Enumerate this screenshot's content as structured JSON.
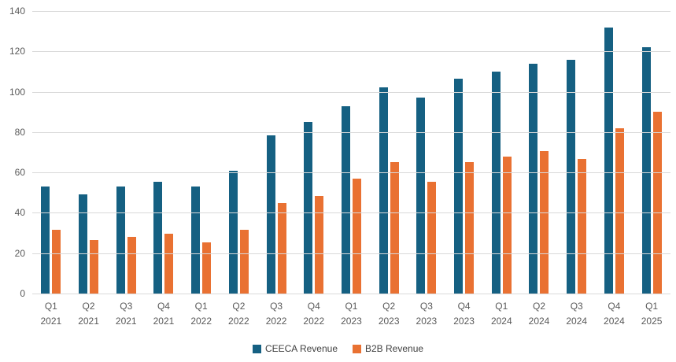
{
  "chart_data": {
    "type": "bar",
    "title": "",
    "categories": [
      "Q1 2021",
      "Q2 2021",
      "Q3 2021",
      "Q4 2021",
      "Q1 2022",
      "Q2 2022",
      "Q3 2022",
      "Q4 2022",
      "Q1 2023",
      "Q2 2023",
      "Q3 2023",
      "Q4 2023",
      "Q1 2024",
      "Q2 2024",
      "Q3 2024",
      "Q4 2024",
      "Q1 2025"
    ],
    "series": [
      {
        "name": "CEECA Revenue",
        "color": "#156082",
        "values": [
          53,
          49,
          53,
          55.5,
          53,
          61,
          78.5,
          85,
          93,
          102,
          97,
          106.5,
          110,
          114,
          116,
          132,
          122
        ]
      },
      {
        "name": "B2B Revenue",
        "color": "#E97132",
        "values": [
          31.5,
          26.5,
          28,
          29.5,
          25.5,
          31.5,
          45,
          48.5,
          57,
          65,
          55.5,
          65,
          68,
          70.5,
          66.5,
          82,
          90
        ]
      }
    ],
    "xlabel": "",
    "ylabel": "",
    "ylim": [
      0,
      140
    ],
    "y_ticks": [
      0,
      20,
      40,
      60,
      80,
      100,
      120,
      140
    ],
    "grid": true,
    "legend_position": "bottom"
  },
  "colors": {
    "background": "#FFFFFF",
    "gridline": "#D9D9D9",
    "axis_label": "#595959",
    "legend_text": "#404040"
  }
}
